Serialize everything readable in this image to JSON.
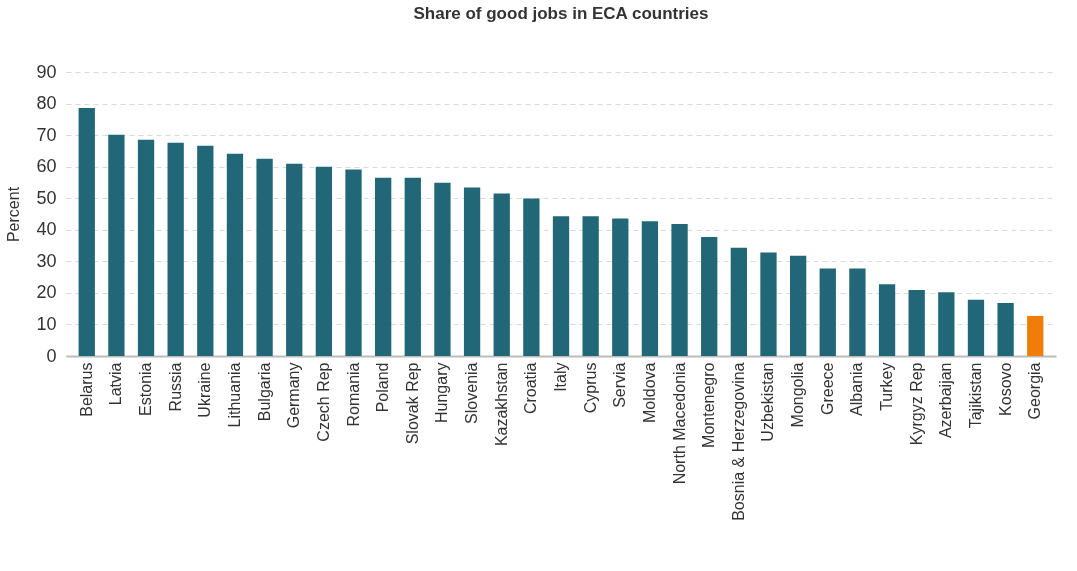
{
  "chart_data": {
    "type": "bar",
    "title": "Share of good jobs in ECA countries",
    "ylabel": "Percent",
    "categories": [
      "Belarus",
      "Latvia",
      "Estonia",
      "Russia",
      "Ukraine",
      "Lithuania",
      "Bulgaria",
      "Germany",
      "Czech Rep",
      "Romania",
      "Poland",
      "Slovak Rep",
      "Hungary",
      "Slovenia",
      "Kazakhstan",
      "Croatia",
      "Italy",
      "Cyprus",
      "Servia",
      "Moldova",
      "North Macedonia",
      "Montenegro",
      "Bosnia & Herzegovina",
      "Uzbekistan",
      "Mongolia",
      "Greece",
      "Albania",
      "Turkey",
      "Kyrgyz Rep",
      "Azerbaijan",
      "Tajikistan",
      "Kosovo",
      "Georgia"
    ],
    "values": [
      78.6,
      70.1,
      68.5,
      67.6,
      66.6,
      64.1,
      62.5,
      60.9,
      60,
      59.1,
      56.5,
      56.5,
      54.9,
      53.4,
      51.5,
      49.9,
      44.3,
      44.3,
      43.6,
      42.7,
      41.8,
      37.7,
      34.3,
      32.8,
      31.8,
      27.7,
      27.7,
      22.7,
      20.9,
      20.2,
      17.8,
      16.8,
      12.7
    ],
    "colors": [
      "#216778",
      "#216778",
      "#216778",
      "#216778",
      "#216778",
      "#216778",
      "#216778",
      "#216778",
      "#216778",
      "#216778",
      "#216778",
      "#216778",
      "#216778",
      "#216778",
      "#216778",
      "#216778",
      "#216778",
      "#216778",
      "#216778",
      "#216778",
      "#216778",
      "#216778",
      "#216778",
      "#216778",
      "#216778",
      "#216778",
      "#216778",
      "#216778",
      "#216778",
      "#216778",
      "#216778",
      "#216778",
      "#f07d0a"
    ],
    "ylim": [
      0,
      90
    ],
    "yticks": [
      0,
      10,
      20,
      30,
      40,
      50,
      60,
      70,
      80,
      90
    ],
    "grid": "y"
  }
}
